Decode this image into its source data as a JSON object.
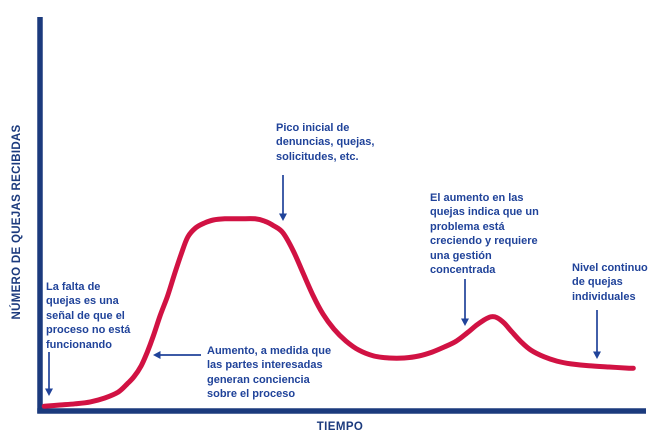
{
  "figure": {
    "ylabel": "NÚMERO DE QUEJAS RECIBIDAS",
    "xlabel": "TIEMPO"
  },
  "annotations": {
    "no_complaints": "La falta de\nquejas es una\nseñal de que el\nproceso no está\nfuncionando",
    "initial_peak": "Pico inicial de\ndenuncias, quejas,\nsolicitudes, etc.",
    "awareness_rise": "Aumento, a medida que\nlas partes interesadas\ngeneran conciencia\nsobre el proceso",
    "growing_problem": "El aumento en las\nquejas indica que un\nproblema está\ncreciendo y requiere\nuna gestión\nconcentrada",
    "continuous_level": "Nivel continuo\nde quejas\nindividuales"
  },
  "colors": {
    "curve": "#d11243",
    "axis": "#1b3a7d",
    "text": "#20439a"
  },
  "chart_data": {
    "type": "line",
    "title": "",
    "xlabel": "TIEMPO",
    "ylabel": "NÚMERO DE QUEJAS RECIBIDAS",
    "xlim": [
      0,
      100
    ],
    "ylim": [
      0,
      100
    ],
    "grid": false,
    "legend": false,
    "x_ticks": [],
    "y_ticks": [],
    "series": [
      {
        "name": "quejas recibidas",
        "color": "#d11243",
        "points": [
          [
            0.7,
            1.1
          ],
          [
            3.3,
            1.4
          ],
          [
            5.8,
            1.7
          ],
          [
            8.3,
            2.2
          ],
          [
            10.7,
            3.2
          ],
          [
            12.9,
            4.7
          ],
          [
            14.4,
            6.8
          ],
          [
            15.5,
            8.6
          ],
          [
            16.7,
            11.4
          ],
          [
            17.7,
            14.9
          ],
          [
            18.7,
            19.0
          ],
          [
            19.8,
            24.1
          ],
          [
            21.0,
            29.0
          ],
          [
            22.1,
            34.3
          ],
          [
            23.3,
            39.9
          ],
          [
            24.4,
            44.3
          ],
          [
            25.7,
            46.6
          ],
          [
            27.1,
            47.8
          ],
          [
            28.6,
            48.6
          ],
          [
            30.5,
            48.9
          ],
          [
            33.0,
            48.9
          ],
          [
            35.5,
            48.9
          ],
          [
            37.1,
            48.3
          ],
          [
            38.6,
            47.1
          ],
          [
            40.1,
            45.3
          ],
          [
            41.8,
            40.7
          ],
          [
            43.4,
            35.1
          ],
          [
            45.1,
            29.2
          ],
          [
            46.7,
            24.6
          ],
          [
            48.5,
            20.8
          ],
          [
            50.5,
            17.7
          ],
          [
            52.6,
            15.4
          ],
          [
            55.1,
            13.9
          ],
          [
            57.6,
            13.4
          ],
          [
            60.1,
            13.4
          ],
          [
            62.5,
            13.9
          ],
          [
            64.7,
            14.9
          ],
          [
            66.7,
            16.2
          ],
          [
            68.7,
            17.7
          ],
          [
            70.5,
            19.8
          ],
          [
            71.9,
            21.6
          ],
          [
            73.3,
            23.1
          ],
          [
            74.4,
            23.9
          ],
          [
            75.4,
            23.7
          ],
          [
            76.6,
            22.3
          ],
          [
            77.9,
            20.0
          ],
          [
            79.4,
            17.5
          ],
          [
            81.0,
            15.4
          ],
          [
            83.2,
            13.7
          ],
          [
            85.3,
            12.6
          ],
          [
            87.6,
            11.9
          ],
          [
            90.6,
            11.4
          ],
          [
            93.9,
            11.1
          ],
          [
            97.2,
            10.8
          ],
          [
            97.9,
            10.8
          ]
        ]
      }
    ],
    "annotations": [
      "La falta de quejas es una señal de que el proceso no está funcionando",
      "Pico inicial de denuncias, quejas, solicitudes, etc.",
      "Aumento, a medida que las partes interesadas generan conciencia sobre el proceso",
      "El aumento en las quejas indica que un problema está creciendo y requiere una gestión concentrada",
      "Nivel continuo de quejas individuales"
    ]
  }
}
